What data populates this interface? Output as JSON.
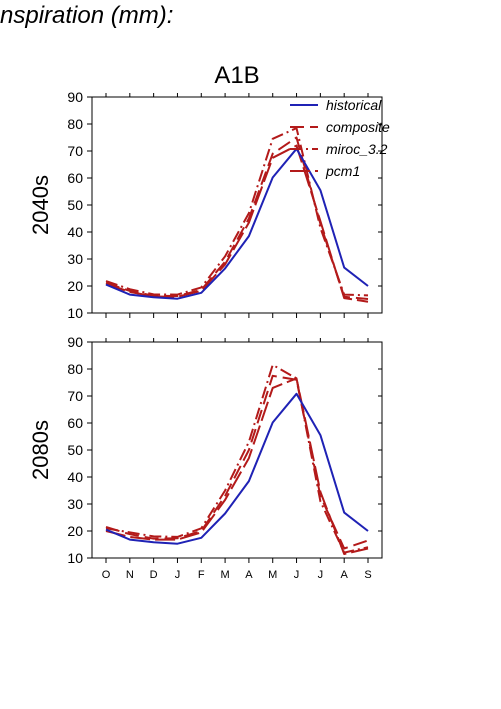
{
  "page": {
    "heading": "nspiration (mm):"
  },
  "chart_data": [
    {
      "type": "line",
      "title": "A1B",
      "ylabel": "2040s",
      "xlabel": "",
      "categories": [
        "O",
        "N",
        "D",
        "J",
        "F",
        "M",
        "A",
        "M",
        "J",
        "J",
        "A",
        "S"
      ],
      "ylim": [
        10,
        90
      ],
      "yticks": [
        10,
        20,
        30,
        40,
        50,
        60,
        70,
        80,
        90
      ],
      "legend_position": "top-right",
      "series": [
        {
          "name": "historical",
          "color": "#1f22b5",
          "dash": "solid",
          "values": [
            20.5,
            16.8,
            15.8,
            15.3,
            17.5,
            26.5,
            38.5,
            60.2,
            70.8,
            55.5,
            26.8,
            20.0
          ]
        },
        {
          "name": "composite",
          "color": "#b31a1a",
          "dash": "long",
          "values": [
            21.2,
            18.2,
            16.4,
            16.3,
            18.6,
            29.0,
            45.0,
            69.0,
            75.0,
            43.0,
            16.0,
            15.2
          ]
        },
        {
          "name": "miroc_3.2",
          "color": "#b31a1a",
          "dash": "dashdot",
          "values": [
            21.8,
            18.8,
            16.9,
            16.8,
            19.5,
            31.0,
            47.0,
            74.5,
            78.5,
            41.5,
            16.8,
            16.5
          ]
        },
        {
          "name": "pcm1",
          "color": "#b31a1a",
          "dash": "longdash",
          "values": [
            20.8,
            17.8,
            16.1,
            16.0,
            18.2,
            28.0,
            43.5,
            67.5,
            72.0,
            44.0,
            15.5,
            14.2
          ]
        }
      ]
    },
    {
      "type": "line",
      "title": "",
      "ylabel": "2080s",
      "xlabel": "",
      "categories": [
        "O",
        "N",
        "D",
        "J",
        "F",
        "M",
        "A",
        "M",
        "J",
        "J",
        "A",
        "S"
      ],
      "ylim": [
        10,
        90
      ],
      "yticks": [
        10,
        20,
        30,
        40,
        50,
        60,
        70,
        80,
        90
      ],
      "series": [
        {
          "name": "historical",
          "color": "#1f22b5",
          "dash": "solid",
          "values": [
            20.5,
            16.8,
            15.8,
            15.3,
            17.5,
            26.5,
            38.5,
            60.2,
            70.8,
            55.5,
            26.8,
            20.0
          ]
        },
        {
          "name": "composite",
          "color": "#b31a1a",
          "dash": "long",
          "values": [
            21.5,
            18.8,
            17.2,
            17.3,
            20.0,
            33.0,
            50.0,
            77.5,
            76.0,
            33.0,
            13.5,
            16.5
          ]
        },
        {
          "name": "miroc_3.2",
          "color": "#b31a1a",
          "dash": "dashdot",
          "values": [
            21.0,
            19.5,
            18.0,
            17.8,
            21.0,
            35.0,
            53.0,
            81.5,
            76.5,
            31.0,
            12.0,
            14.0
          ]
        },
        {
          "name": "pcm1",
          "color": "#b31a1a",
          "dash": "longdash",
          "values": [
            20.0,
            17.8,
            16.8,
            16.8,
            19.5,
            31.5,
            47.0,
            73.0,
            76.5,
            34.5,
            11.5,
            13.5
          ]
        }
      ]
    }
  ]
}
